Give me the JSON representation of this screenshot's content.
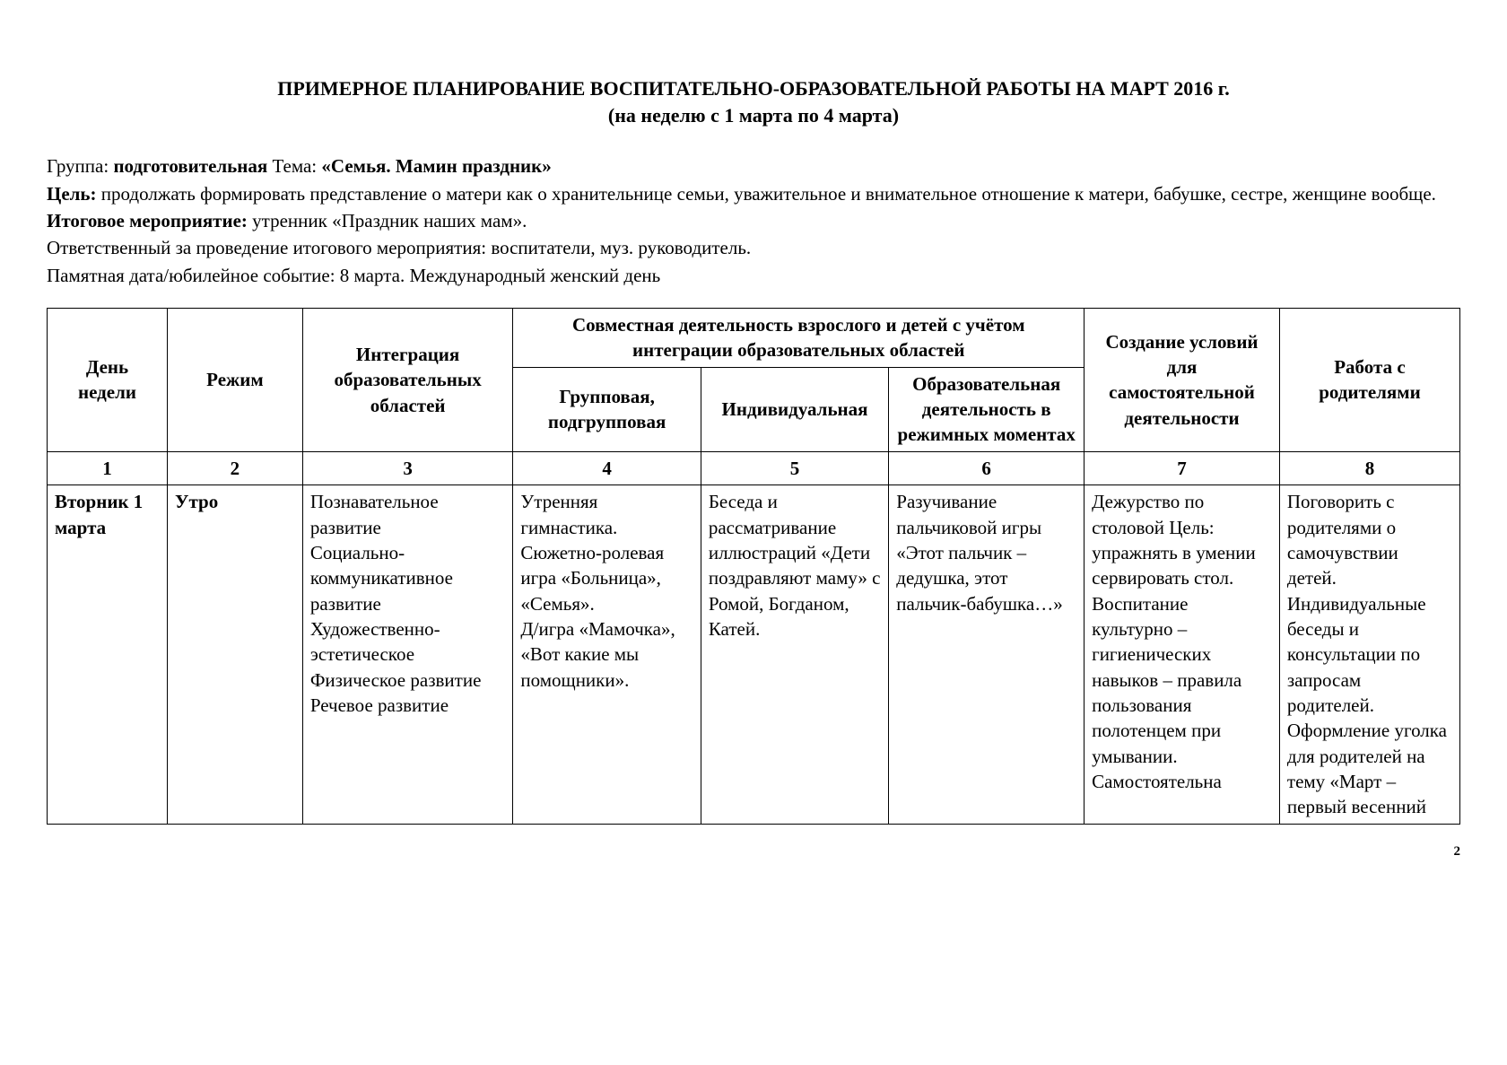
{
  "title": {
    "line1": "ПРИМЕРНОЕ   ПЛАНИРОВАНИЕ   ВОСПИТАТЕЛЬНО-ОБРАЗОВАТЕЛЬНОЙ   РАБОТЫ НА МАРТ 2016 г.",
    "line2": "(на неделю с 1 марта по 4 марта)"
  },
  "meta": {
    "group_label": "Группа: ",
    "group_value": "подготовительная",
    "theme_label": "  Тема: ",
    "theme_value": "«Семья. Мамин праздник»",
    "goal_label": "Цель: ",
    "goal_value": "продолжать формировать представление о матери как о хранительнице семьи,  уважительное и внимательное отношение к матери, бабушке, сестре, женщине вообще.",
    "final_event_label": "Итоговое мероприятие: ",
    "final_event_value": "утренник «Праздник наших мам».",
    "responsible": "Ответственный за проведение итогового мероприятия:  воспитатели, муз. руководитель.",
    "memorial": "Памятная дата/юбилейное событие: 8 марта. Международный женский день"
  },
  "table": {
    "head": {
      "day": "День недели",
      "regime": "Режим",
      "integration": "Интеграция образовательных областей",
      "joint_activity": "Совместная деятельность взрослого и детей с учётом интеграции образовательных областей",
      "group_sub": "Групповая, подгрупповая",
      "individual": "Индивидуальная",
      "edu_in_regime": "Образовательная деятельность в режимных моментах",
      "conditions": "Создание условий для самостоятельной деятельности",
      "parents": "Работа с родителями"
    },
    "numbers": [
      "1",
      "2",
      "3",
      "4",
      "5",
      "6",
      "7",
      "8"
    ],
    "row": {
      "day": "Вторник 1 марта",
      "regime": "Утро",
      "integration": "Познавательное развитие\nСоциально-коммуникативное развитие\nХудожественно-эстетическое\nФизическое развитие\nРечевое развитие",
      "group_sub": "Утренняя гимнастика.\nСюжетно-ролевая игра «Больница», «Семья».\nД/игра «Мамочка», «Вот какие мы помощники».",
      "individual": "Беседа и рассматривание иллюстраций «Дети поздравляют маму» с Ромой, Богданом, Катей.",
      "edu_in_regime": "Разучивание пальчиковой игры «Этот пальчик – дедушка, этот пальчик-бабушка…»",
      "conditions": "Дежурство по столовой Цель: упражнять в умении сервировать стол.\nВоспитание культурно – гигиенических навыков – правила пользования полотенцем при умывании.\nСамостоятельна",
      "parents": "Поговорить с родителями о самочувствии детей.\nИндивидуальные беседы и консультации по запросам родителей.\nОформление уголка для родителей на тему «Март – первый весенний"
    }
  },
  "page_number": "2",
  "colors": {
    "text": "#000000",
    "background": "#ffffff",
    "border": "#000000"
  }
}
